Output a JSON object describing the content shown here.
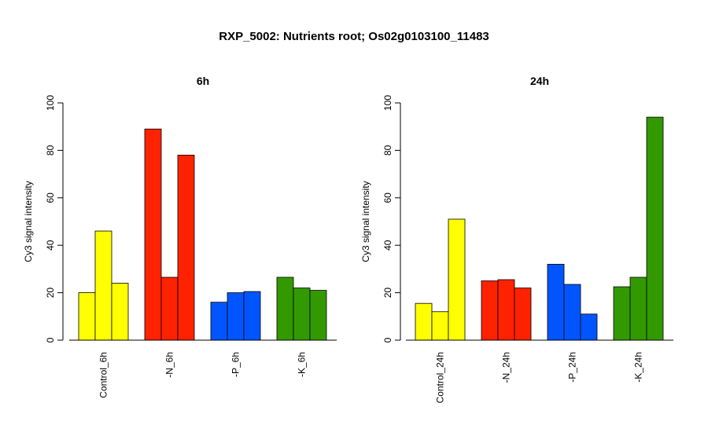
{
  "title": "RXP_5002: Nutrients root; Os02g0103100_11483",
  "chart_data": [
    {
      "type": "bar",
      "title": "6h",
      "ylabel": "Cy3 signal intensity",
      "ylim": [
        0,
        100
      ],
      "yticks": [
        0,
        20,
        40,
        60,
        80,
        100
      ],
      "categories": [
        "Control_6h",
        "-N_6h",
        "-P_6h",
        "-K_6h"
      ],
      "colors": [
        "#ffff00",
        "#ff2200",
        "#0055ff",
        "#339900"
      ],
      "values": [
        [
          20,
          46,
          24
        ],
        [
          89,
          26.5,
          78
        ],
        [
          16,
          20,
          20.5
        ],
        [
          26.5,
          22,
          21
        ]
      ]
    },
    {
      "type": "bar",
      "title": "24h",
      "ylabel": "Cy3 signal intensity",
      "ylim": [
        0,
        100
      ],
      "yticks": [
        0,
        20,
        40,
        60,
        80,
        100
      ],
      "categories": [
        "Control_24h",
        "-N_24h",
        "-P_24h",
        "-K_24h"
      ],
      "colors": [
        "#ffff00",
        "#ff2200",
        "#0055ff",
        "#339900"
      ],
      "values": [
        [
          15.5,
          12,
          51
        ],
        [
          25,
          25.5,
          22
        ],
        [
          32,
          23.5,
          11
        ],
        [
          22.5,
          26.5,
          94
        ]
      ]
    }
  ]
}
